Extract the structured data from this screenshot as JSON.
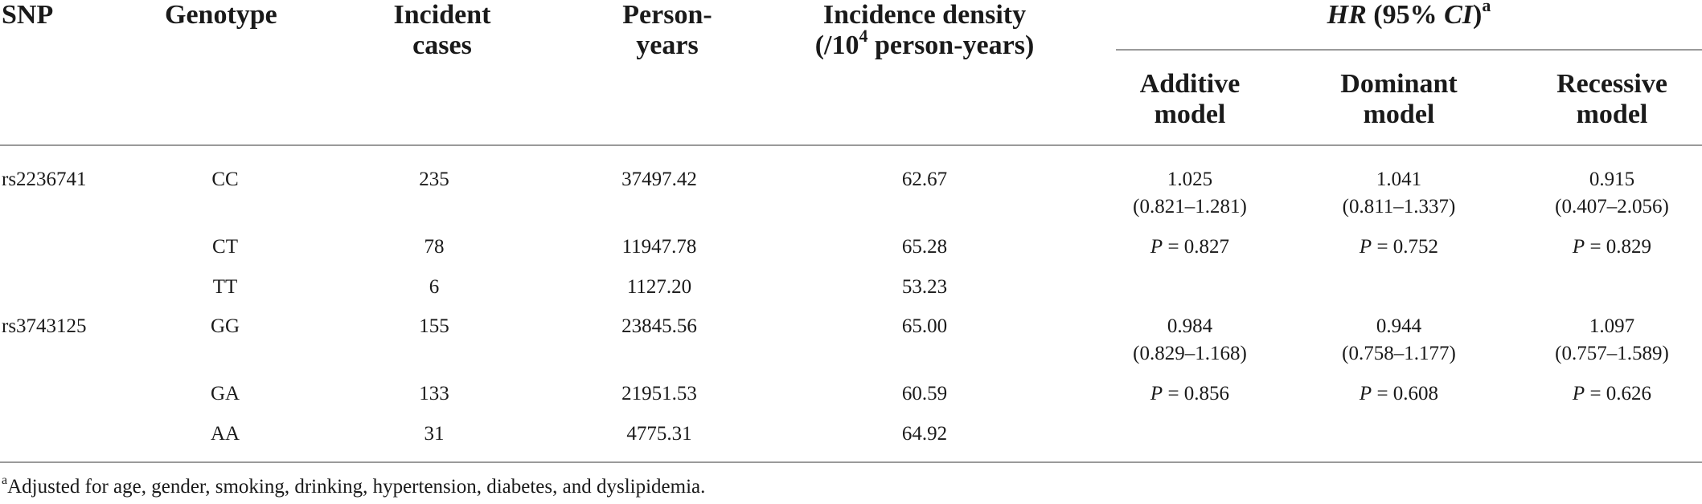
{
  "header": {
    "snp": "SNP",
    "genotype": "Genotype",
    "incident_cases_1": "Incident",
    "incident_cases_2": "cases",
    "person_years_1": "Person-",
    "person_years_2": "years",
    "density_1": "Incidence density",
    "density_2_pre": "(/10",
    "density_2_sup": "4",
    "density_2_post": " person-years)",
    "hr_label": "HR",
    "hr_mid": " (95% ",
    "hr_ci": "CI",
    "hr_close": ")",
    "hr_sup": "a",
    "additive_1": "Additive",
    "additive_2": "model",
    "dominant_1": "Dominant",
    "dominant_2": "model",
    "recessive_1": "Recessive",
    "recessive_2": "model"
  },
  "rows": [
    {
      "snp": "rs2236741",
      "genotype": "CC",
      "cases": "235",
      "person_years": "37497.42",
      "density": "62.67"
    },
    {
      "snp": "",
      "genotype": "CT",
      "cases": "78",
      "person_years": "11947.78",
      "density": "65.28"
    },
    {
      "snp": "",
      "genotype": "TT",
      "cases": "6",
      "person_years": "1127.20",
      "density": "53.23"
    },
    {
      "snp": "rs3743125",
      "genotype": "GG",
      "cases": "155",
      "person_years": "23845.56",
      "density": "65.00"
    },
    {
      "snp": "",
      "genotype": "GA",
      "cases": "133",
      "person_years": "21951.53",
      "density": "60.59"
    },
    {
      "snp": "",
      "genotype": "AA",
      "cases": "31",
      "person_years": "4775.31",
      "density": "64.92"
    }
  ],
  "hr_groups": [
    {
      "additive": {
        "hr": "1.025",
        "ci": "(0.821–1.281)",
        "p": " = 0.827"
      },
      "dominant": {
        "hr": "1.041",
        "ci": "(0.811–1.337)",
        "p": " = 0.752"
      },
      "recessive": {
        "hr": "0.915",
        "ci": "(0.407–2.056)",
        "p": " = 0.829"
      }
    },
    {
      "additive": {
        "hr": "0.984",
        "ci": "(0.829–1.168)",
        "p": " = 0.856"
      },
      "dominant": {
        "hr": "0.944",
        "ci": "(0.758–1.177)",
        "p": " = 0.608"
      },
      "recessive": {
        "hr": "1.097",
        "ci": "(0.757–1.589)",
        "p": " = 0.626"
      }
    }
  ],
  "p_letter": "P",
  "footnote": {
    "marker": "a",
    "text": "Adjusted for age, gender, smoking, drinking, hypertension, diabetes, and dyslipidemia."
  }
}
